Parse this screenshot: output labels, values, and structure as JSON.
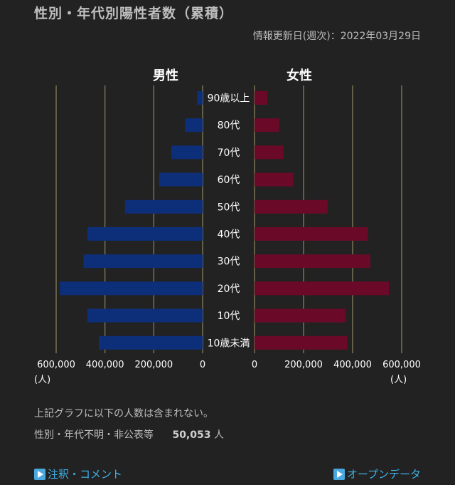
{
  "header": {
    "title": "性別・年代別陽性者数（累積）",
    "update": "情報更新日(週次)：2022年03月29日"
  },
  "chart_data": {
    "type": "bar",
    "orientation": "horizontal-pyramid",
    "categories": [
      "90歳以上",
      "80代",
      "70代",
      "60代",
      "50代",
      "40代",
      "30代",
      "20代",
      "10代",
      "10歳未満"
    ],
    "series": [
      {
        "name": "男性",
        "color": "#0d2f7a",
        "values": [
          22000,
          72000,
          128000,
          178000,
          318000,
          472000,
          488000,
          585000,
          472000,
          425000
        ]
      },
      {
        "name": "女性",
        "color": "#6b0a28",
        "values": [
          52000,
          100000,
          118000,
          158000,
          298000,
          462000,
          472000,
          548000,
          372000,
          378000
        ]
      }
    ],
    "axis": {
      "max": 600000,
      "male_ticks": [
        "600,000",
        "400,000",
        "200,000",
        "0"
      ],
      "female_ticks": [
        "0",
        "200,000",
        "400,000",
        "600,000"
      ],
      "unit": "(人)"
    },
    "grid": true
  },
  "notes": {
    "line1": "上記グラフに以下の人数は含まれない。",
    "line2_label": "性別・年代不明・非公表等",
    "line2_count": "50,053",
    "line2_unit": "人"
  },
  "links": {
    "notes": "注釈・コメント",
    "open_data": "オープンデータ"
  },
  "colors": {
    "background": "#222222",
    "male": "#0d2f7a",
    "female": "#6b0a28",
    "link": "#3fb0e8"
  }
}
